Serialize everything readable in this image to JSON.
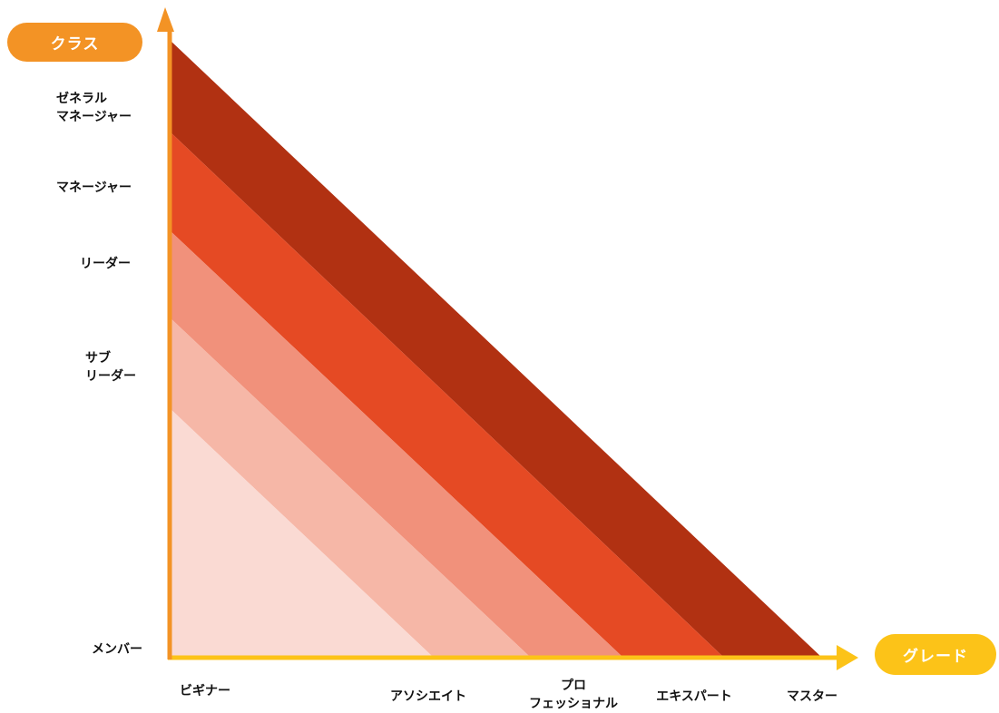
{
  "axes": {
    "y_axis_title": "クラス",
    "x_axis_title": "グレード",
    "y_color": "#f39325",
    "x_color": "#fcc318"
  },
  "y_levels": [
    {
      "label": "メンバー"
    },
    {
      "label": "サブ\nリーダー"
    },
    {
      "label": "リーダー"
    },
    {
      "label": "マネージャー"
    },
    {
      "label": "ゼネラル\nマネージャー"
    }
  ],
  "x_levels": [
    {
      "label": "ビギナー"
    },
    {
      "label": "アソシエイト"
    },
    {
      "label": "プロ\nフェッショナル"
    },
    {
      "label": "エキスパート"
    },
    {
      "label": "マスター"
    }
  ],
  "band_colors": [
    "#fadad3",
    "#f6b7a7",
    "#f1917b",
    "#e54a24",
    "#b13112"
  ]
}
